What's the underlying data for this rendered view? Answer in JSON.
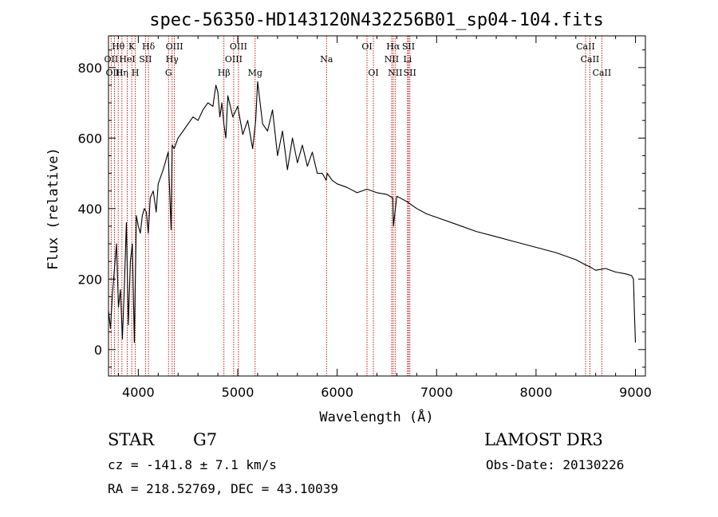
{
  "chart_data": {
    "type": "line",
    "title": "spec-56350-HD143120N432256B01_sp04-104.fits",
    "xlabel": "Wavelength (Å)",
    "ylabel": "Flux (relative)",
    "xlim": [
      3700,
      9100
    ],
    "ylim": [
      -75,
      890
    ],
    "xticks": [
      4000,
      5000,
      6000,
      7000,
      8000,
      9000
    ],
    "yticks": [
      0,
      200,
      400,
      600,
      800
    ],
    "grid": false,
    "series": [
      {
        "name": "spectrum",
        "x": [
          3700,
          3720,
          3740,
          3760,
          3780,
          3800,
          3820,
          3840,
          3860,
          3880,
          3900,
          3920,
          3940,
          3960,
          3980,
          4000,
          4020,
          4040,
          4060,
          4080,
          4100,
          4120,
          4150,
          4180,
          4200,
          4250,
          4300,
          4330,
          4340,
          4360,
          4400,
          4450,
          4500,
          4550,
          4600,
          4650,
          4700,
          4750,
          4780,
          4800,
          4820,
          4840,
          4860,
          4880,
          4900,
          4950,
          5000,
          5050,
          5100,
          5150,
          5180,
          5200,
          5250,
          5300,
          5350,
          5400,
          5450,
          5500,
          5550,
          5600,
          5650,
          5700,
          5750,
          5800,
          5850,
          5890,
          5900,
          5950,
          6000,
          6100,
          6200,
          6300,
          6400,
          6500,
          6560,
          6565,
          6600,
          6700,
          6800,
          6900,
          7000,
          7200,
          7400,
          7600,
          7800,
          8000,
          8200,
          8400,
          8500,
          8540,
          8600,
          8700,
          8800,
          8900,
          8960,
          8980,
          8990,
          9000
        ],
        "values": [
          110,
          60,
          160,
          230,
          300,
          120,
          170,
          30,
          180,
          360,
          70,
          250,
          300,
          20,
          380,
          350,
          330,
          380,
          400,
          390,
          330,
          430,
          450,
          390,
          470,
          510,
          560,
          340,
          580,
          570,
          600,
          620,
          640,
          660,
          650,
          680,
          700,
          690,
          750,
          730,
          660,
          700,
          640,
          600,
          720,
          660,
          690,
          610,
          650,
          570,
          650,
          760,
          640,
          620,
          680,
          550,
          620,
          510,
          600,
          530,
          580,
          520,
          560,
          500,
          500,
          480,
          500,
          480,
          470,
          460,
          445,
          455,
          445,
          440,
          430,
          350,
          435,
          420,
          400,
          385,
          375,
          355,
          335,
          320,
          305,
          290,
          275,
          255,
          240,
          235,
          225,
          230,
          220,
          215,
          210,
          200,
          100,
          20
        ]
      }
    ],
    "line_labels": [
      {
        "text": "Hθ",
        "x": 3798,
        "row": 0
      },
      {
        "text": "K",
        "x": 3934,
        "row": 0
      },
      {
        "text": "Hδ",
        "x": 4102,
        "row": 0
      },
      {
        "text": "OIII",
        "x": 4363,
        "row": 0
      },
      {
        "text": "OIII",
        "x": 5007,
        "row": 0
      },
      {
        "text": "OI",
        "x": 6300,
        "row": 0
      },
      {
        "text": "Hα",
        "x": 6563,
        "row": 0
      },
      {
        "text": "SII",
        "x": 6717,
        "row": 0
      },
      {
        "text": "CaII",
        "x": 8498,
        "row": 0
      },
      {
        "text": "OII",
        "x": 3727,
        "row": 1
      },
      {
        "text": "HeI",
        "x": 3889,
        "row": 1
      },
      {
        "text": "SII",
        "x": 4072,
        "row": 1
      },
      {
        "text": "Hγ",
        "x": 4340,
        "row": 1
      },
      {
        "text": "OIII",
        "x": 4959,
        "row": 1
      },
      {
        "text": "Na",
        "x": 5893,
        "row": 1
      },
      {
        "text": "NII",
        "x": 6548,
        "row": 1
      },
      {
        "text": "Li",
        "x": 6708,
        "row": 1
      },
      {
        "text": "CaII",
        "x": 8542,
        "row": 1
      },
      {
        "text": "OIII",
        "x": 3760,
        "row": 2
      },
      {
        "text": "Hη",
        "x": 3835,
        "row": 2
      },
      {
        "text": "H",
        "x": 3970,
        "row": 2
      },
      {
        "text": "G",
        "x": 4304,
        "row": 2
      },
      {
        "text": "Hβ",
        "x": 4861,
        "row": 2
      },
      {
        "text": "Mg",
        "x": 5175,
        "row": 2
      },
      {
        "text": "OI",
        "x": 6364,
        "row": 2
      },
      {
        "text": "NII",
        "x": 6583,
        "row": 2
      },
      {
        "text": "SII",
        "x": 6731,
        "row": 2
      },
      {
        "text": "CaII",
        "x": 8662,
        "row": 2
      }
    ]
  },
  "info": {
    "object_class": "STAR",
    "subclass": "G7",
    "survey": "LAMOST DR3",
    "cz": "cz = -141.8 ± 7.1 km/s",
    "obs_date": "Obs-Date: 20130226",
    "radec": "RA = 218.52769, DEC =  43.10039"
  },
  "colors": {
    "spectrum": "#000000",
    "line_marker": "#c00000",
    "axes": "#000000"
  }
}
